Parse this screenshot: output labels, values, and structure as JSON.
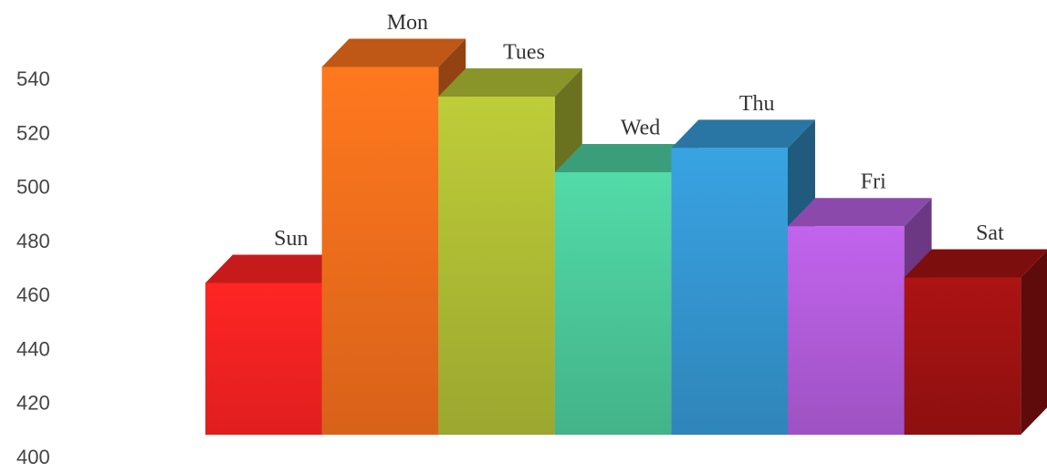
{
  "chart_data": {
    "type": "bar3d",
    "categories": [
      "Sun",
      "Mon",
      "Tues",
      "Wed",
      "Thu",
      "Fri",
      "Sat"
    ],
    "values": [
      465,
      545,
      534,
      506,
      515,
      486,
      467
    ],
    "colors": [
      "#ff2222",
      "#f56f1c",
      "#b0be35",
      "#4ccb9c",
      "#3597d2",
      "#b45ddc",
      "#a01212"
    ],
    "ylim": [
      400,
      560
    ],
    "yticks": [
      400,
      420,
      440,
      460,
      480,
      500,
      520,
      540
    ]
  }
}
